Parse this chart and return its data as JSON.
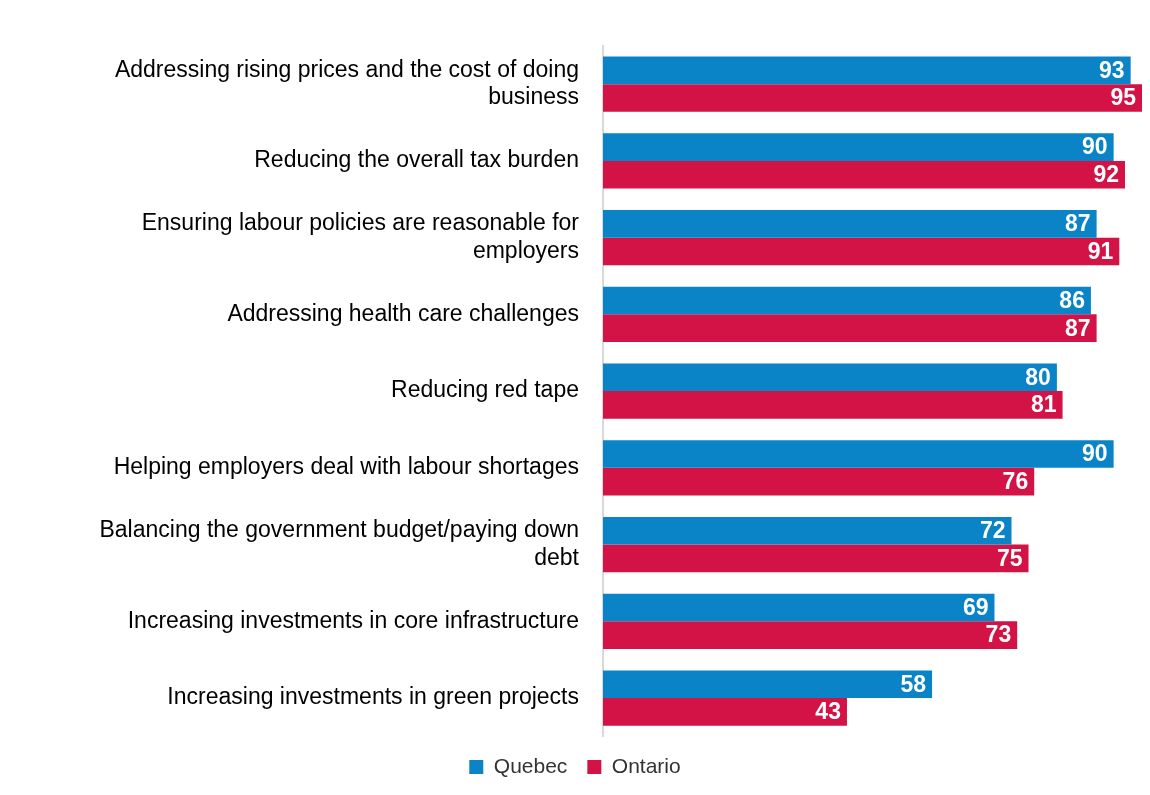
{
  "chart_data": {
    "type": "bar",
    "orientation": "horizontal",
    "data_labels": true,
    "legend": "bottom",
    "categories": [
      "Addressing rising prices and the cost of doing business",
      "Reducing the overall tax burden",
      "Ensuring labour policies are reasonable for employers",
      "Addressing health care challenges",
      "Reducing red tape",
      "Helping employers deal with labour shortages",
      "Balancing the government budget/paying down debt",
      "Increasing investments in core infrastructure",
      "Increasing investments in green projects"
    ],
    "series": [
      {
        "name": "Quebec",
        "color": "#0a84c6",
        "values": [
          93,
          90,
          87,
          86,
          80,
          90,
          72,
          69,
          58
        ]
      },
      {
        "name": "Ontario",
        "color": "#d31245",
        "values": [
          95,
          92,
          91,
          87,
          81,
          76,
          75,
          73,
          43
        ]
      }
    ]
  }
}
